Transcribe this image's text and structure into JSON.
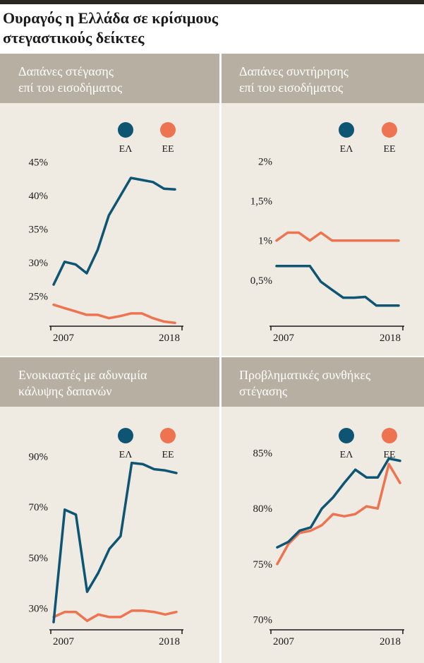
{
  "page": {
    "title_line1": "Ουραγός η Ελλάδα σε κρίσιμους",
    "title_line2": "στεγαστικούς δείκτες"
  },
  "colors": {
    "el": "#0d5573",
    "ee": "#ee7350",
    "band": "#b7b0a2",
    "panel_bg": "#efebe2"
  },
  "chart_data": [
    {
      "type": "line",
      "title_line1": "Δαπάνες στέγασης",
      "title_line2": "επί του εισοδήματος",
      "x": [
        2007,
        2008,
        2009,
        2010,
        2011,
        2012,
        2013,
        2014,
        2015,
        2016,
        2017,
        2018
      ],
      "x_tick_labels": [
        "2007",
        "2018"
      ],
      "y_ticks": [
        25,
        30,
        35,
        40,
        45
      ],
      "y_tick_labels": [
        "25%",
        "30%",
        "35%",
        "40%",
        "45%"
      ],
      "ylim": [
        20.5,
        46.5
      ],
      "legend": [
        "ΕΛ",
        "ΕΕ"
      ],
      "series": [
        {
          "name": "ΕΛ",
          "values": [
            26.7,
            30.1,
            29.7,
            28.4,
            31.9,
            37.0,
            39.8,
            42.6,
            42.3,
            42.0,
            41.0,
            40.9
          ]
        },
        {
          "name": "ΕΕ",
          "values": [
            23.7,
            23.2,
            22.7,
            22.2,
            22.2,
            21.7,
            22.0,
            22.4,
            22.4,
            21.7,
            21.2,
            21.0
          ]
        }
      ]
    },
    {
      "type": "line",
      "title_line1": "Δαπάνες συντήρησης",
      "title_line2": "επί του εισοδήματος",
      "x": [
        2007,
        2008,
        2009,
        2010,
        2011,
        2012,
        2013,
        2014,
        2015,
        2016,
        2017,
        2018
      ],
      "x_tick_labels": [
        "2007",
        "2018"
      ],
      "y_ticks": [
        0.5,
        1.0,
        1.5,
        2.0
      ],
      "y_tick_labels": [
        "0,5%",
        "1%",
        "1,5%",
        "2%"
      ],
      "ylim": [
        -0.08,
        2.12
      ],
      "legend": [
        "ΕΛ",
        "ΕΕ"
      ],
      "series": [
        {
          "name": "ΕΛ",
          "values": [
            0.68,
            0.68,
            0.68,
            0.68,
            0.48,
            0.38,
            0.28,
            0.28,
            0.29,
            0.18,
            0.18,
            0.18
          ]
        },
        {
          "name": "ΕΕ",
          "values": [
            1.0,
            1.1,
            1.1,
            1.0,
            1.1,
            1.0,
            1.0,
            1.0,
            1.0,
            1.0,
            1.0,
            1.0
          ]
        }
      ]
    },
    {
      "type": "line",
      "title_line1": "Ενοικιαστές με αδυναμία",
      "title_line2": "κάλυψης δαπανών",
      "x": [
        2007,
        2008,
        2009,
        2010,
        2011,
        2012,
        2013,
        2014,
        2015,
        2016,
        2017,
        2018
      ],
      "x_tick_labels": [
        "2007",
        "2018"
      ],
      "y_ticks": [
        30,
        50,
        70,
        90
      ],
      "y_tick_labels": [
        "30%",
        "50%",
        "70%",
        "90%"
      ],
      "ylim": [
        22,
        98
      ],
      "legend": [
        "ΕΛ",
        "ΕΕ"
      ],
      "series": [
        {
          "name": "ΕΛ",
          "values": [
            24.5,
            69.0,
            67.0,
            36.5,
            44.0,
            53.5,
            58.5,
            87.5,
            87.0,
            85.0,
            84.5,
            83.5
          ]
        },
        {
          "name": "ΕΕ",
          "values": [
            26.5,
            28.5,
            28.5,
            25.0,
            27.5,
            26.5,
            26.5,
            29.0,
            29.0,
            28.5,
            27.5,
            28.5
          ]
        }
      ]
    },
    {
      "type": "line",
      "title_line1": "Προβληματικές συνθήκες",
      "title_line2": "στέγασης",
      "x": [
        2007,
        2008,
        2009,
        2010,
        2011,
        2012,
        2013,
        2014,
        2015,
        2016,
        2017,
        2018
      ],
      "x_tick_labels": [
        "2007",
        "2018"
      ],
      "y_ticks": [
        70,
        75,
        80,
        85
      ],
      "y_tick_labels": [
        "70%",
        "75%",
        "80%",
        "85%"
      ],
      "ylim": [
        69.2,
        86.5
      ],
      "legend": [
        "ΕΛ",
        "ΕΕ"
      ],
      "series": [
        {
          "name": "ΕΛ",
          "values": [
            76.5,
            77.0,
            78.0,
            78.3,
            80.0,
            81.0,
            82.3,
            83.5,
            82.8,
            82.8,
            84.5,
            84.3
          ]
        },
        {
          "name": "ΕΕ",
          "values": [
            75.0,
            76.8,
            77.8,
            78.0,
            78.5,
            79.5,
            79.3,
            79.5,
            80.2,
            80.0,
            84.0,
            82.3
          ]
        }
      ]
    }
  ]
}
